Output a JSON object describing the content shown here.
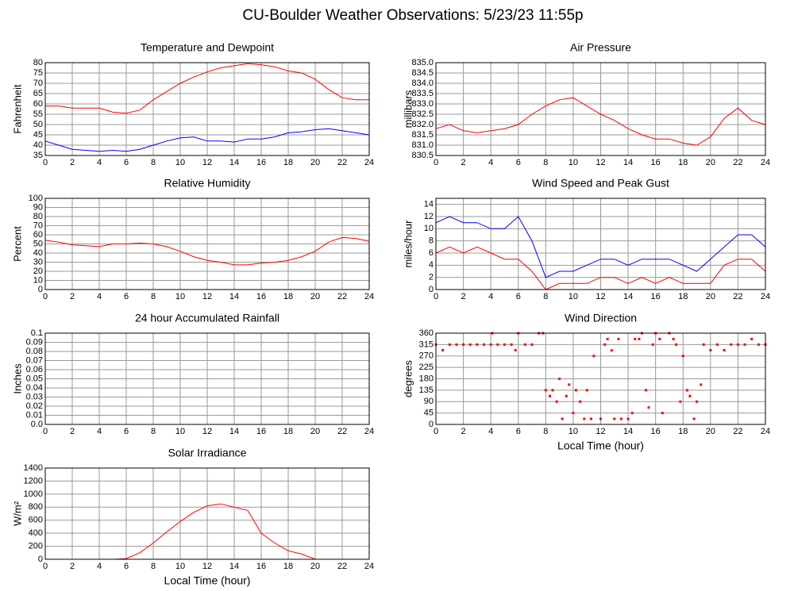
{
  "title": "CU-Boulder Weather Observations: 5/23/23 11:55p",
  "chart_data": [
    {
      "type": "line",
      "title": "Temperature and Dewpoint",
      "ylabel": "Fahrenheit",
      "x": [
        0,
        1,
        2,
        3,
        4,
        5,
        6,
        7,
        8,
        9,
        10,
        11,
        12,
        13,
        14,
        15,
        16,
        17,
        18,
        19,
        20,
        21,
        22,
        23,
        24
      ],
      "series": [
        {
          "color": "#ff0000",
          "values": [
            59,
            59,
            58,
            58,
            58,
            56,
            55.5,
            57,
            62,
            66,
            70,
            73,
            75.5,
            77.5,
            78.5,
            79.5,
            79,
            78,
            76,
            75,
            72,
            67,
            63,
            62,
            62
          ]
        },
        {
          "color": "#0000ff",
          "values": [
            42,
            40,
            38,
            37.5,
            37,
            37.5,
            37,
            38,
            40,
            42,
            43.5,
            44,
            42,
            42,
            41.5,
            43,
            43,
            44,
            46,
            46.5,
            47.5,
            48,
            47,
            46,
            45
          ]
        }
      ],
      "xlim": [
        0,
        24
      ],
      "xticks": [
        0,
        2,
        4,
        6,
        8,
        10,
        12,
        14,
        16,
        18,
        20,
        22,
        24
      ],
      "ylim": [
        35,
        80
      ],
      "yticks": [
        35,
        40,
        45,
        50,
        55,
        60,
        65,
        70,
        75,
        80
      ],
      "grid": true
    },
    {
      "type": "line",
      "title": "Air Pressure",
      "ylabel": "millibars",
      "x": [
        0,
        1,
        2,
        3,
        4,
        5,
        6,
        7,
        8,
        9,
        10,
        11,
        12,
        13,
        14,
        15,
        16,
        17,
        18,
        19,
        20,
        21,
        22,
        23,
        24
      ],
      "series": [
        {
          "color": "#ff0000",
          "values": [
            831.8,
            832.0,
            831.7,
            831.6,
            831.7,
            831.8,
            832.0,
            832.5,
            832.9,
            833.2,
            833.3,
            832.9,
            832.5,
            832.2,
            831.8,
            831.5,
            831.3,
            831.3,
            831.1,
            831.0,
            831.4,
            832.3,
            832.8,
            832.2,
            832.0
          ]
        }
      ],
      "xlim": [
        0,
        24
      ],
      "xticks": [
        0,
        2,
        4,
        6,
        8,
        10,
        12,
        14,
        16,
        18,
        20,
        22,
        24
      ],
      "ylim": [
        830.5,
        835
      ],
      "yticks": [
        830.5,
        {
          "value": 831,
          "label": "831.0"
        },
        831.5,
        {
          "value": 832,
          "label": "832.0"
        },
        832.5,
        {
          "value": 833,
          "label": "833.0"
        },
        833.5,
        {
          "value": 834,
          "label": "834.0"
        },
        834.5,
        {
          "value": 835,
          "label": "835.0"
        }
      ],
      "grid": true
    },
    {
      "type": "line",
      "title": "Relative Humidity",
      "ylabel": "Percent",
      "x": [
        0,
        1,
        2,
        3,
        4,
        5,
        6,
        7,
        8,
        9,
        10,
        11,
        12,
        13,
        14,
        15,
        16,
        17,
        18,
        19,
        20,
        21,
        22,
        23,
        24
      ],
      "series": [
        {
          "color": "#ff0000",
          "values": [
            54,
            52,
            49,
            48,
            47,
            50,
            50,
            51,
            50,
            47,
            42,
            36,
            32,
            30,
            27,
            27,
            29,
            30,
            32,
            36,
            42,
            52,
            57,
            56,
            53
          ]
        }
      ],
      "xlim": [
        0,
        24
      ],
      "xticks": [
        0,
        2,
        4,
        6,
        8,
        10,
        12,
        14,
        16,
        18,
        20,
        22,
        24
      ],
      "ylim": [
        0,
        100
      ],
      "yticks": [
        0,
        10,
        20,
        30,
        40,
        50,
        60,
        70,
        80,
        90,
        100
      ],
      "grid": true
    },
    {
      "type": "line",
      "title": "Wind Speed and Peak Gust",
      "ylabel": "miles/hour",
      "x": [
        0,
        1,
        2,
        3,
        4,
        5,
        6,
        7,
        8,
        9,
        10,
        11,
        12,
        13,
        14,
        15,
        16,
        17,
        18,
        19,
        20,
        21,
        22,
        23,
        24
      ],
      "series": [
        {
          "color": "#0000ff",
          "values": [
            11,
            12,
            11,
            11,
            10,
            10,
            12,
            8,
            2,
            3,
            3,
            4,
            5,
            5,
            4,
            5,
            5,
            5,
            4,
            3,
            5,
            7,
            9,
            9,
            7
          ]
        },
        {
          "color": "#ff0000",
          "values": [
            6,
            7,
            6,
            7,
            6,
            5,
            5,
            3,
            0,
            1,
            1,
            1,
            2,
            2,
            1,
            2,
            1,
            2,
            1,
            1,
            1,
            4,
            5,
            5,
            3
          ]
        }
      ],
      "xlim": [
        0,
        24
      ],
      "xticks": [
        0,
        2,
        4,
        6,
        8,
        10,
        12,
        14,
        16,
        18,
        20,
        22,
        24
      ],
      "ylim": [
        0,
        15
      ],
      "yticks": [
        0,
        2,
        4,
        6,
        8,
        10,
        12,
        14
      ],
      "grid": true
    },
    {
      "type": "line",
      "title": "24 hour Accumulated Rainfall",
      "ylabel": "Inches",
      "x": [
        0,
        24
      ],
      "series": [
        {
          "color": "#ff0000",
          "values": [
            0,
            0
          ]
        }
      ],
      "xlim": [
        0,
        24
      ],
      "xticks": [
        0,
        2,
        4,
        6,
        8,
        10,
        12,
        14,
        16,
        18,
        20,
        22,
        24
      ],
      "ylim": [
        0,
        0.1
      ],
      "yticks": [
        {
          "value": 0,
          "label": "0.0"
        },
        0.01,
        0.02,
        0.03,
        0.04,
        0.05,
        0.06,
        0.07,
        0.08,
        0.09,
        0.1
      ],
      "grid": true
    },
    {
      "type": "scatter",
      "title": "Wind Direction",
      "ylabel": "degrees",
      "xlabel": "Local Time (hour)",
      "x": [
        0,
        0.5,
        1,
        1.5,
        2,
        2.5,
        3,
        3.5,
        4,
        4.1,
        4.5,
        5,
        5.5,
        5.8,
        6,
        6.5,
        7,
        7.5,
        7.8,
        8,
        8.3,
        8.5,
        8.8,
        9,
        9.2,
        9.5,
        9.7,
        10,
        10.2,
        10.5,
        10.8,
        11,
        11.3,
        11.5,
        12,
        12.3,
        12.5,
        12.8,
        13,
        13.3,
        13.5,
        14,
        14.3,
        14.5,
        14.8,
        15,
        15.3,
        15.5,
        15.8,
        16,
        16.3,
        16.5,
        17,
        17.3,
        17.5,
        17.8,
        18,
        18.3,
        18.5,
        18.8,
        19,
        19.3,
        19.5,
        20,
        20.5,
        21,
        21.5,
        22,
        22.5,
        23,
        23.5,
        24
      ],
      "series": [
        {
          "color": "#ff0000",
          "values": [
            315,
            293,
            315,
            315,
            315,
            315,
            315,
            315,
            315,
            360,
            315,
            315,
            315,
            293,
            360,
            315,
            315,
            360,
            360,
            135,
            112,
            135,
            90,
            180,
            22,
            112,
            157,
            45,
            135,
            90,
            22,
            135,
            22,
            270,
            22,
            315,
            337,
            292,
            22,
            337,
            22,
            22,
            45,
            337,
            337,
            360,
            135,
            67,
            315,
            360,
            337,
            45,
            360,
            337,
            315,
            90,
            270,
            135,
            112,
            22,
            90,
            157,
            315,
            293,
            315,
            293,
            315,
            315,
            315,
            337,
            315,
            315
          ]
        }
      ],
      "xlim": [
        0,
        24
      ],
      "xticks": [
        0,
        2,
        4,
        6,
        8,
        10,
        12,
        14,
        16,
        18,
        20,
        22,
        24
      ],
      "ylim": [
        0,
        360
      ],
      "yticks": [
        0,
        45,
        90,
        135,
        180,
        225,
        270,
        315,
        360
      ],
      "grid": true
    },
    {
      "type": "line",
      "title": "Solar Irradiance",
      "ylabel": "W/m²",
      "xlabel": "Local Time (hour)",
      "x": [
        0,
        1,
        2,
        3,
        4,
        5,
        6,
        7,
        8,
        9,
        10,
        11,
        12,
        13,
        14,
        15,
        16,
        17,
        18,
        19,
        20,
        21,
        22,
        23,
        24
      ],
      "series": [
        {
          "color": "#ff0000",
          "values": [
            0,
            0,
            0,
            0,
            0,
            0,
            10,
            100,
            250,
            420,
            580,
            720,
            820,
            850,
            800,
            750,
            400,
            250,
            130,
            80,
            0,
            0,
            0,
            0,
            0
          ]
        }
      ],
      "xlim": [
        0,
        24
      ],
      "xticks": [
        0,
        2,
        4,
        6,
        8,
        10,
        12,
        14,
        16,
        18,
        20,
        22,
        24
      ],
      "ylim": [
        0,
        1400
      ],
      "yticks": [
        0,
        200,
        400,
        600,
        800,
        1000,
        1200,
        1400
      ],
      "grid": true
    }
  ]
}
